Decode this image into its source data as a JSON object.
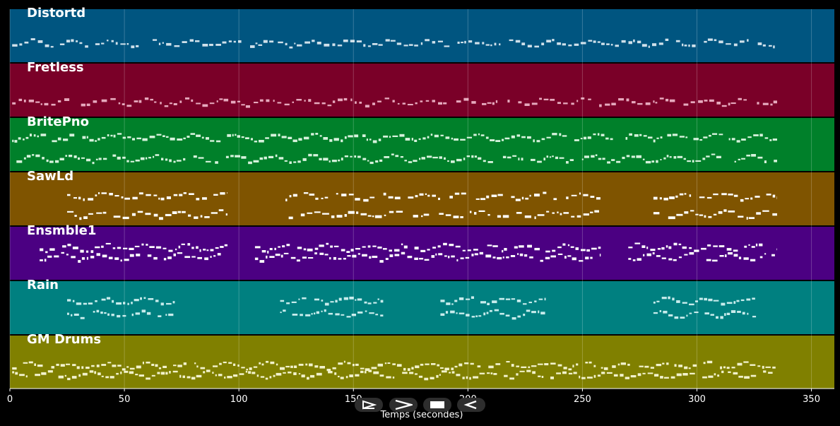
{
  "chart_data": {
    "type": "piano-roll",
    "xlabel": "Temps (secondes)",
    "xlim": [
      0,
      360
    ],
    "xticks": [
      0,
      50,
      100,
      150,
      200,
      250,
      300,
      350
    ],
    "grid": true,
    "tracks": [
      {
        "name": "Distortd",
        "color": "#005580",
        "segments": [
          [
            1,
            334
          ]
        ],
        "bands": [
          [
            0.55,
            0.7
          ]
        ],
        "density": 0.8,
        "note_color": "#cfe0ea"
      },
      {
        "name": "Fretless",
        "color": "#7a0028",
        "segments": [
          [
            1,
            335
          ]
        ],
        "bands": [
          [
            0.64,
            0.78
          ]
        ],
        "density": 0.6,
        "note_color": "#e6a9bd"
      },
      {
        "name": "BritePno",
        "color": "#00802a",
        "segments": [
          [
            1,
            335
          ]
        ],
        "bands": [
          [
            0.35,
            0.75
          ]
        ],
        "density": 1.4,
        "note_color": "#d6f2dc"
      },
      {
        "name": "SawLd",
        "color": "#7f5400",
        "segments": [
          [
            25,
            95
          ],
          [
            118,
            258
          ],
          [
            281,
            335
          ]
        ],
        "bands": [
          [
            0.35,
            0.52
          ],
          [
            0.75,
            0.8
          ]
        ],
        "density": 0.7,
        "note_color": "#ffffff"
      },
      {
        "name": "Ensmble1",
        "color": "#4b0082",
        "segments": [
          [
            13,
            95
          ],
          [
            107,
            258
          ],
          [
            270,
            335
          ]
        ],
        "bands": [
          [
            0.38,
            0.55
          ]
        ],
        "density": 1.0,
        "note_color": "#ffffff"
      },
      {
        "name": "Rain",
        "color": "#008080",
        "segments": [
          [
            25,
            72
          ],
          [
            118,
            163
          ],
          [
            188,
            234
          ],
          [
            281,
            326
          ]
        ],
        "bands": [
          [
            0.35,
            0.6
          ]
        ],
        "density": 1.0,
        "note_color": "#c8ecec"
      },
      {
        "name": "GM Drums",
        "color": "#808000",
        "segments": [
          [
            1,
            335
          ]
        ],
        "bands": [
          [
            0.55,
            0.72
          ]
        ],
        "density": 1.2,
        "note_color": "#f2f2cc"
      }
    ]
  },
  "controls": [
    {
      "name": "play-button",
      "icon": "play-outline-icon"
    },
    {
      "name": "forward-button",
      "icon": "chevron-right-icon"
    },
    {
      "name": "stop-button",
      "icon": "stop-icon"
    },
    {
      "name": "rewind-button",
      "icon": "rewind-icon"
    }
  ]
}
